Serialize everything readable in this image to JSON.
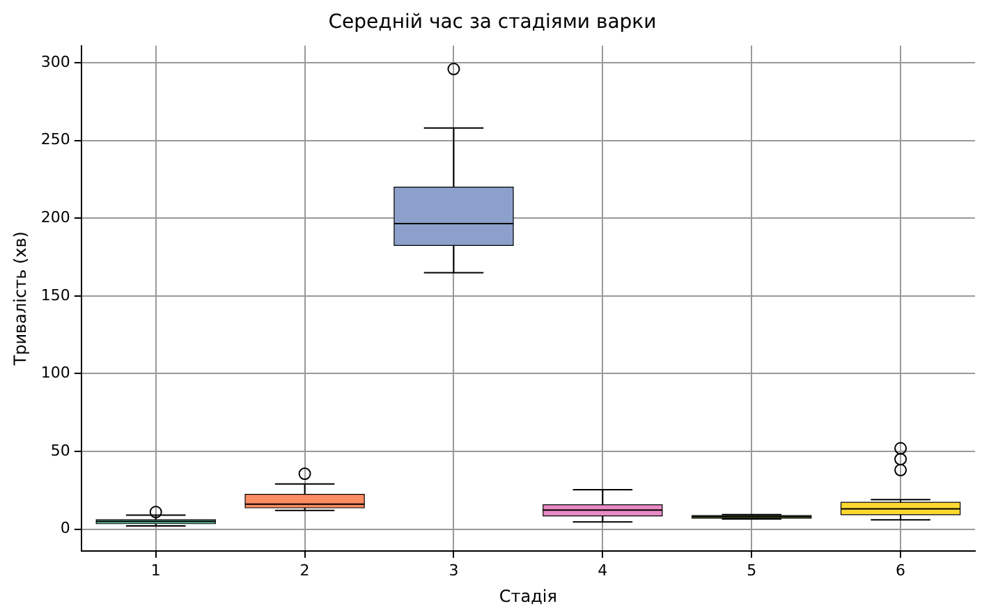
{
  "chart_data": {
    "type": "box",
    "title": "Середній час за стадіями варки",
    "xlabel": "Стадія",
    "ylabel": "Тривалість (хв)",
    "categories": [
      "1",
      "2",
      "3",
      "4",
      "5",
      "6"
    ],
    "colors": [
      "#66c2a5",
      "#fc8d62",
      "#8da0cb",
      "#e78ac3",
      "#a6d854",
      "#ffd92f"
    ],
    "boxes": [
      {
        "low": 2,
        "q1": 3.5,
        "median": 5,
        "q3": 6,
        "high": 9,
        "outliers": [
          11
        ]
      },
      {
        "low": 12,
        "q1": 13.7,
        "median": 16,
        "q3": 22.4,
        "high": 29,
        "outliers": [
          35.6
        ]
      },
      {
        "low": 165,
        "q1": 182.5,
        "median": 196.5,
        "q3": 220,
        "high": 258,
        "outliers": [
          296
        ]
      },
      {
        "low": 4.6,
        "q1": 8.5,
        "median": 12.2,
        "q3": 15.7,
        "high": 25.4
      },
      {
        "low": 6.5,
        "q1": 7,
        "median": 8,
        "q3": 8.7,
        "high": 9.3
      },
      {
        "low": 6,
        "q1": 9.3,
        "median": 13,
        "q3": 17.2,
        "high": 19,
        "outliers": [
          38,
          45,
          52
        ]
      }
    ],
    "ylim": [
      -14,
      311
    ],
    "yticks": [
      0,
      50,
      100,
      150,
      200,
      250,
      300
    ],
    "grid": true,
    "legend": false
  }
}
